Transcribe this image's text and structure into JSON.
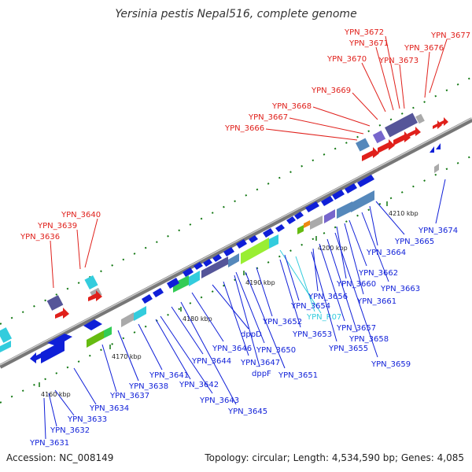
{
  "title": "Yersinia pestis Nepal516, complete genome",
  "accession": "Accession: NC_008149",
  "topology": "Topology: circular; Length: 4,534,590 bp; Genes: 4,085",
  "colors": {
    "red": "#e0201b",
    "blue": "#0f1fd8",
    "cyan": "#33ccdd",
    "purple": "#555599",
    "green": "#66bb11",
    "grey": "#aaaaaa",
    "steel": "#5588bb",
    "backbone": "#888888",
    "tick": "#117711"
  },
  "ticks": [
    "4160 kbp",
    "4170 kbp",
    "4180 kbp",
    "4190 kbp",
    "4200 kbp",
    "4210 kbp"
  ],
  "labels": [
    {
      "text": "YPN_3636",
      "color": "red"
    },
    {
      "text": "YPN_3639",
      "color": "red"
    },
    {
      "text": "YPN_3640",
      "color": "red"
    },
    {
      "text": "YPN_3666",
      "color": "red"
    },
    {
      "text": "YPN_3667",
      "color": "red"
    },
    {
      "text": "YPN_3668",
      "color": "red"
    },
    {
      "text": "YPN_3669",
      "color": "red"
    },
    {
      "text": "YPN_3670",
      "color": "red"
    },
    {
      "text": "YPN_3671",
      "color": "red"
    },
    {
      "text": "YPN_3672",
      "color": "red"
    },
    {
      "text": "YPN_3673",
      "color": "red"
    },
    {
      "text": "YPN_3676",
      "color": "red"
    },
    {
      "text": "YPN_3677",
      "color": "red"
    },
    {
      "text": "YPN_3631",
      "color": "blue"
    },
    {
      "text": "YPN_3632",
      "color": "blue"
    },
    {
      "text": "YPN_3633",
      "color": "blue"
    },
    {
      "text": "YPN_3634",
      "color": "blue"
    },
    {
      "text": "YPN_3637",
      "color": "blue"
    },
    {
      "text": "YPN_3638",
      "color": "blue"
    },
    {
      "text": "YPN_3641",
      "color": "blue"
    },
    {
      "text": "YPN_3642",
      "color": "blue"
    },
    {
      "text": "YPN_3643",
      "color": "blue"
    },
    {
      "text": "YPN_3644",
      "color": "blue"
    },
    {
      "text": "YPN_3645",
      "color": "blue"
    },
    {
      "text": "YPN_3646",
      "color": "blue"
    },
    {
      "text": "dppD",
      "color": "blue"
    },
    {
      "text": "YPN_3647",
      "color": "blue"
    },
    {
      "text": "dppF",
      "color": "blue"
    },
    {
      "text": "YPN_3650",
      "color": "blue"
    },
    {
      "text": "YPN_3651",
      "color": "blue"
    },
    {
      "text": "YPN_3652",
      "color": "blue"
    },
    {
      "text": "YPN_3653",
      "color": "blue"
    },
    {
      "text": "YPN_3654",
      "color": "blue"
    },
    {
      "text": "YPN_R07",
      "color": "cyan"
    },
    {
      "text": "YPN_3655",
      "color": "blue"
    },
    {
      "text": "YPN_3656",
      "color": "blue"
    },
    {
      "text": "YPN_3657",
      "color": "blue"
    },
    {
      "text": "YPN_3658",
      "color": "blue"
    },
    {
      "text": "YPN_3659",
      "color": "blue"
    },
    {
      "text": "YPN_3660",
      "color": "blue"
    },
    {
      "text": "YPN_3661",
      "color": "blue"
    },
    {
      "text": "YPN_3662",
      "color": "blue"
    },
    {
      "text": "YPN_3663",
      "color": "blue"
    },
    {
      "text": "YPN_3664",
      "color": "blue"
    },
    {
      "text": "YPN_3665",
      "color": "blue"
    },
    {
      "text": "YPN_3674",
      "color": "blue"
    }
  ]
}
